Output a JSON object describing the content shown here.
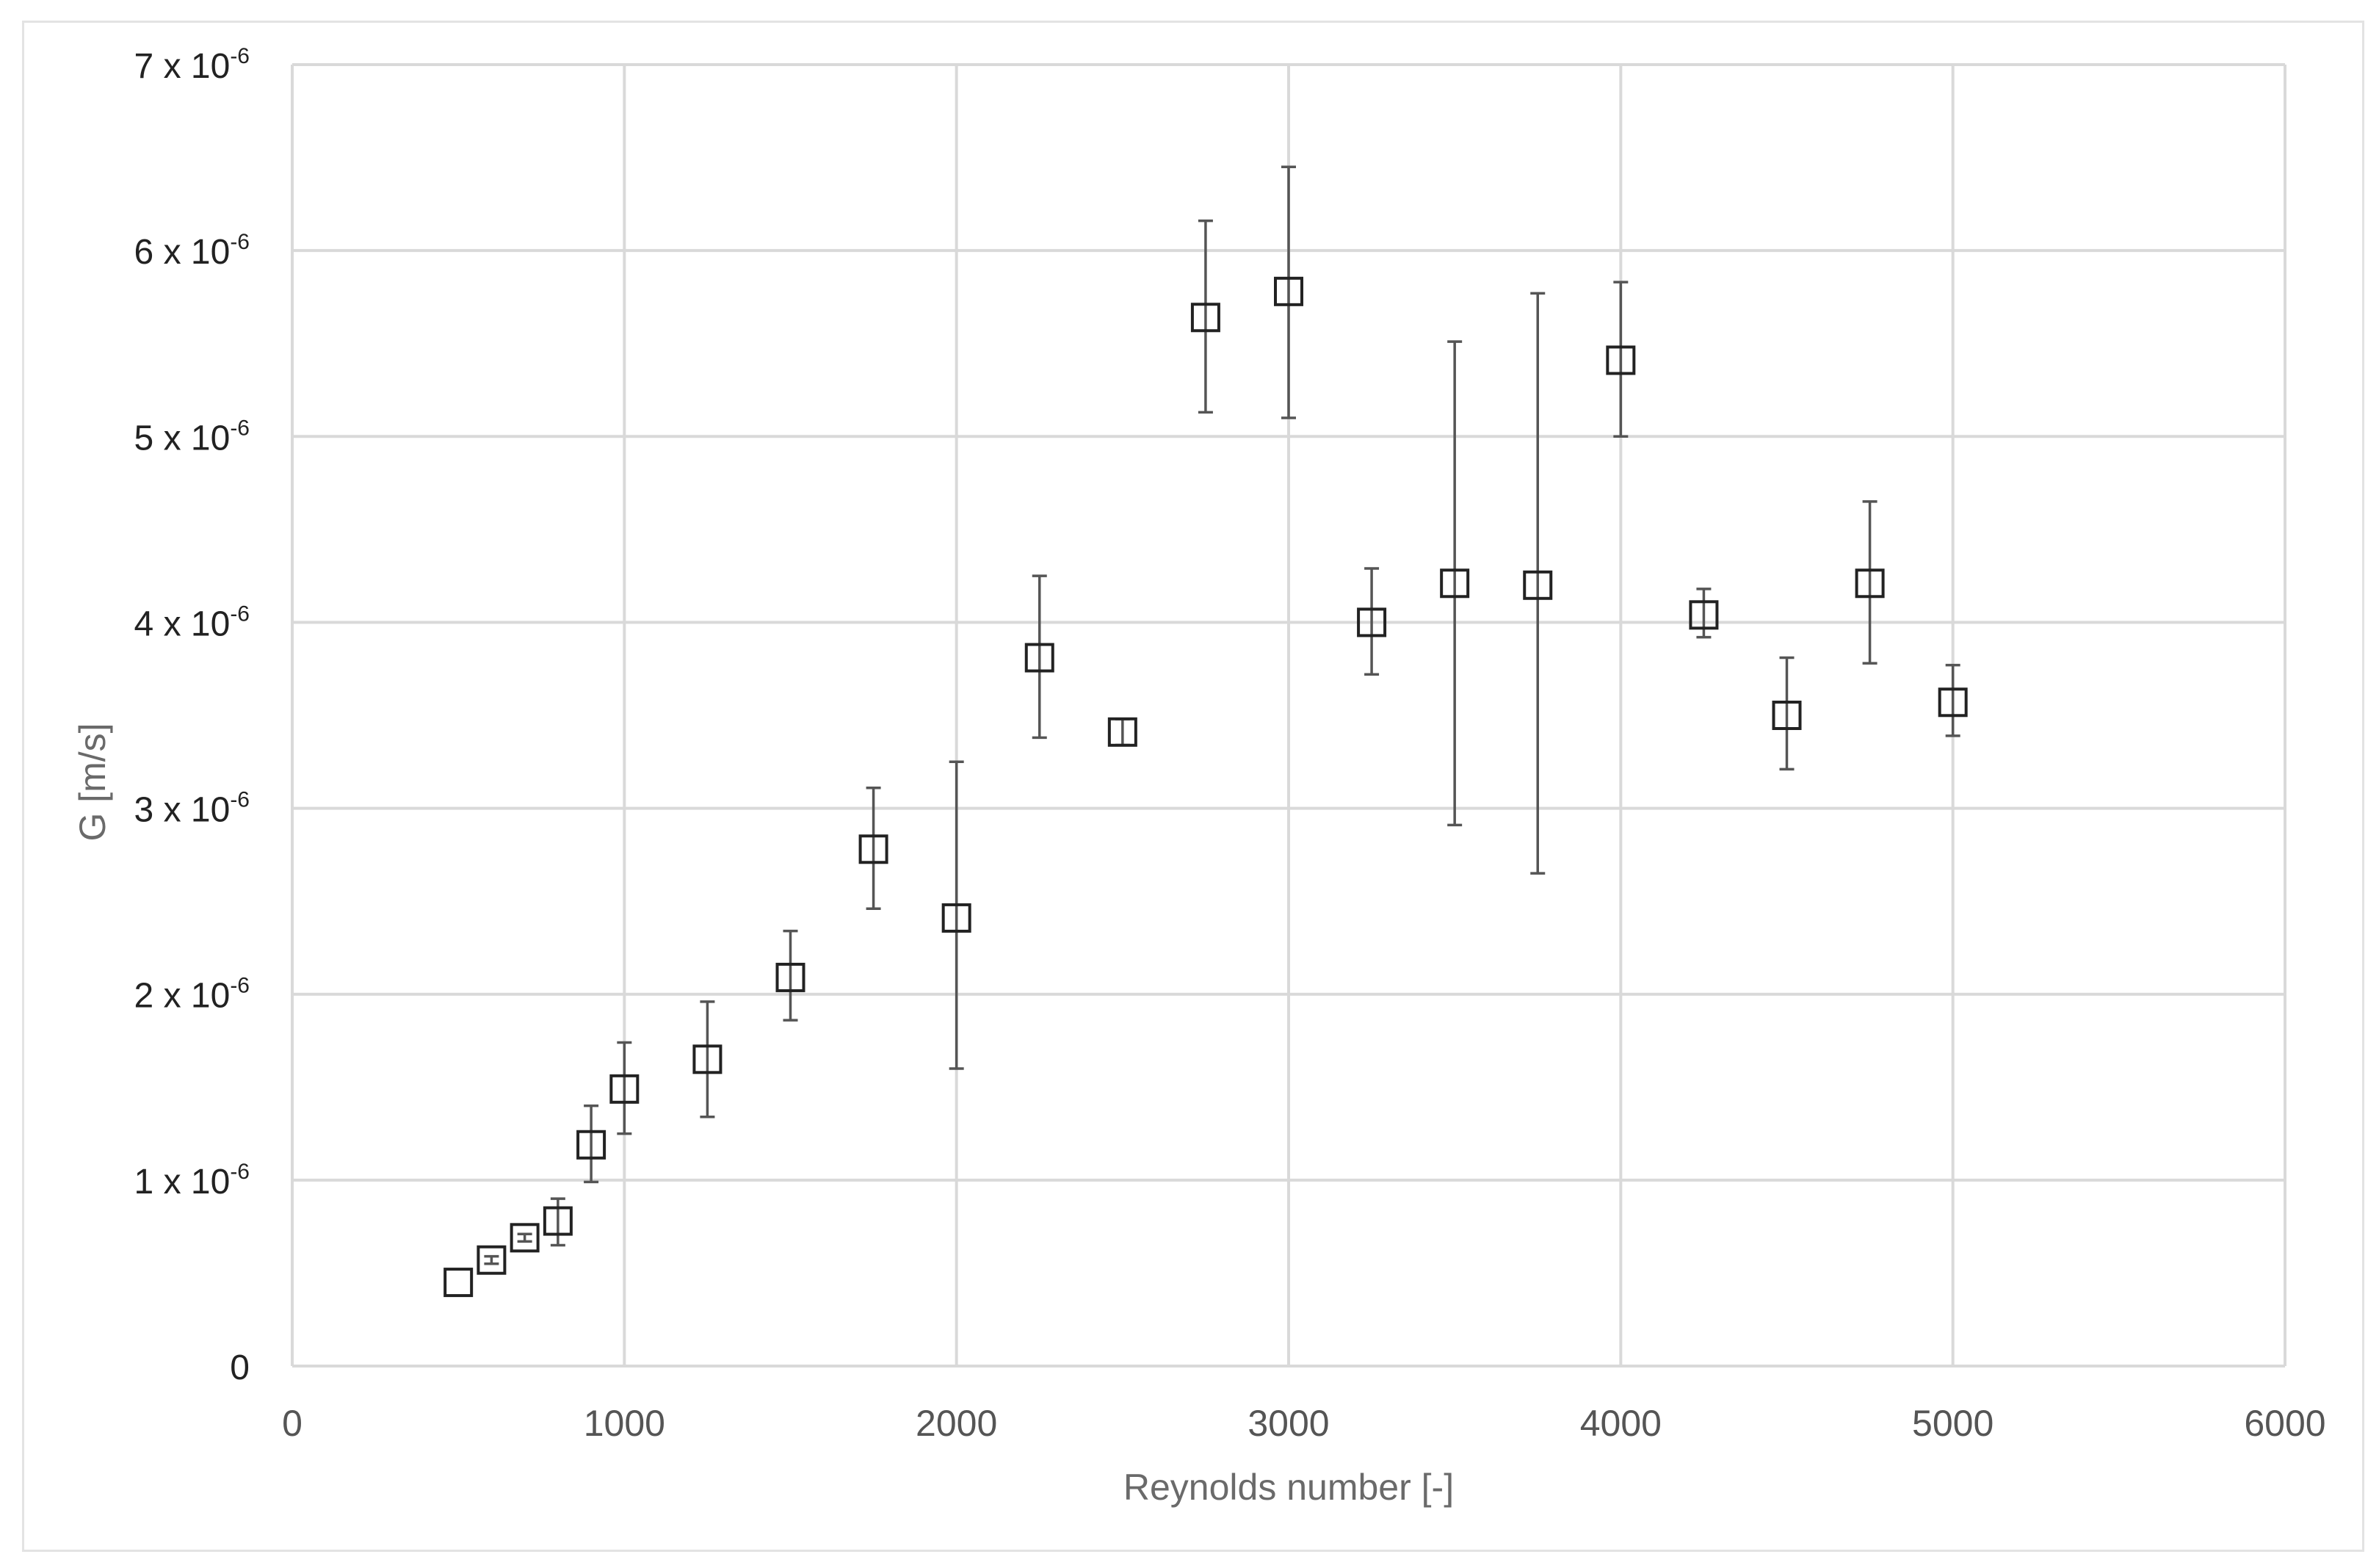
{
  "chart_data": {
    "type": "scatter",
    "title": "",
    "xlabel": "Reynolds number [-]",
    "ylabel": "G [m/s]",
    "xlim": [
      0,
      6000
    ],
    "ylim": [
      0,
      7e-06
    ],
    "x_ticks": [
      "0",
      "1000",
      "2000",
      "3000",
      "4000",
      "5000",
      "6000"
    ],
    "y_ticks": [
      {
        "base": "0",
        "exp": ""
      },
      {
        "base": "1 x 10",
        "exp": "-6"
      },
      {
        "base": "2 x 10",
        "exp": "-6"
      },
      {
        "base": "3 x 10",
        "exp": "-6"
      },
      {
        "base": "4 x 10",
        "exp": "-6"
      },
      {
        "base": "5 x 10",
        "exp": "-6"
      },
      {
        "base": "6 x 10",
        "exp": "-6"
      },
      {
        "base": "7 x 10",
        "exp": "-6"
      }
    ],
    "grid": true,
    "marker": "open-square",
    "series": [
      {
        "name": "",
        "x": [
          500,
          600,
          700,
          800,
          900,
          1000,
          1250,
          1500,
          1750,
          2000,
          2250,
          2500,
          2750,
          3000,
          3250,
          3500,
          3750,
          4000,
          4250,
          4500,
          4750,
          5000
        ],
        "y": [
          4.5e-07,
          5.7e-07,
          6.9e-07,
          7.8e-07,
          1.19e-06,
          1.49e-06,
          1.65e-06,
          2.09e-06,
          2.78e-06,
          2.41e-06,
          3.81e-06,
          3.41e-06,
          5.64e-06,
          5.78e-06,
          4e-06,
          4.21e-06,
          4.2e-06,
          5.41e-06,
          4.04e-06,
          3.5e-06,
          4.21e-06,
          3.57e-06
        ],
        "yerr_low": [
          4.5e-07,
          5.5e-07,
          6.7e-07,
          6.5e-07,
          9.9e-07,
          1.25e-06,
          1.34e-06,
          1.86e-06,
          2.46e-06,
          1.6e-06,
          3.38e-06,
          3.34e-06,
          5.13e-06,
          5.1e-06,
          3.72e-06,
          2.91e-06,
          2.65e-06,
          5e-06,
          3.92e-06,
          3.21e-06,
          3.78e-06,
          3.39e-06
        ],
        "yerr_high": [
          4.5e-07,
          5.9e-07,
          7.1e-07,
          9e-07,
          1.4e-06,
          1.74e-06,
          1.96e-06,
          2.34e-06,
          3.11e-06,
          3.25e-06,
          4.25e-06,
          3.48e-06,
          6.16e-06,
          6.45e-06,
          4.29e-06,
          5.51e-06,
          5.77e-06,
          5.83e-06,
          4.18e-06,
          3.81e-06,
          4.65e-06,
          3.77e-06
        ]
      }
    ]
  }
}
